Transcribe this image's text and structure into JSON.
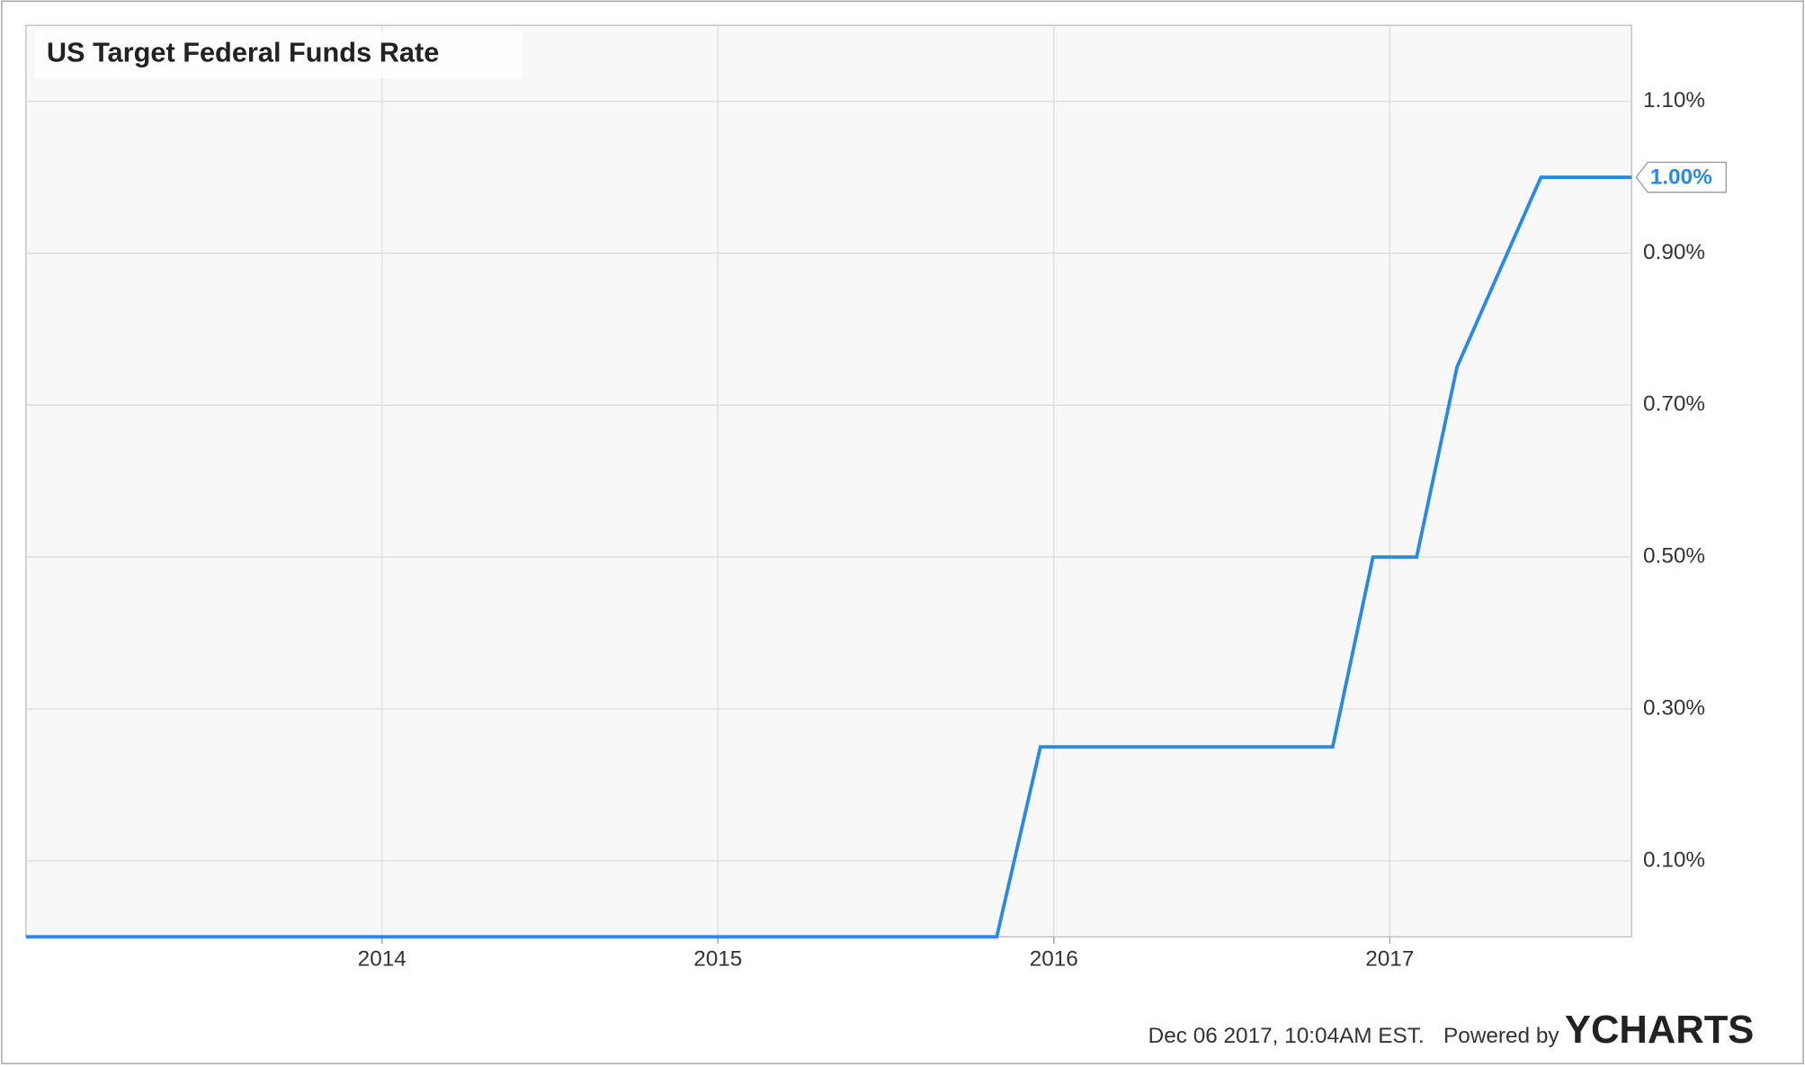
{
  "chart_data": {
    "type": "line",
    "title": "US Target Federal Funds Rate",
    "x": [
      2012.94,
      2015.83,
      2015.96,
      2016.83,
      2016.95,
      2017.08,
      2017.2,
      2017.45,
      2017.72
    ],
    "values": [
      0,
      0,
      0.25,
      0.25,
      0.5,
      0.5,
      0.75,
      1.0,
      1.0
    ],
    "value_labels": [
      null,
      null,
      null,
      null,
      null,
      null,
      null,
      null,
      "1.00%"
    ],
    "color": "#2a8ae3",
    "xlim": [
      2012.94,
      2017.72
    ],
    "xticks": [
      2014,
      2015,
      2016,
      2017
    ],
    "ylim": [
      0,
      1.2
    ],
    "yticks": [
      {
        "value": 0.1,
        "label": "0.10%"
      },
      {
        "value": 0.3,
        "label": "0.30%"
      },
      {
        "value": 0.5,
        "label": "0.50%"
      },
      {
        "value": 0.7,
        "label": "0.70%"
      },
      {
        "value": 0.9,
        "label": "0.90%"
      },
      {
        "value": 1.1,
        "label": "1.10%"
      }
    ],
    "grid": true,
    "footer": {
      "timestamp": "Dec 06 2017, 10:04AM EST.",
      "powered_by": "Powered by",
      "brand": "YCHARTS"
    }
  }
}
